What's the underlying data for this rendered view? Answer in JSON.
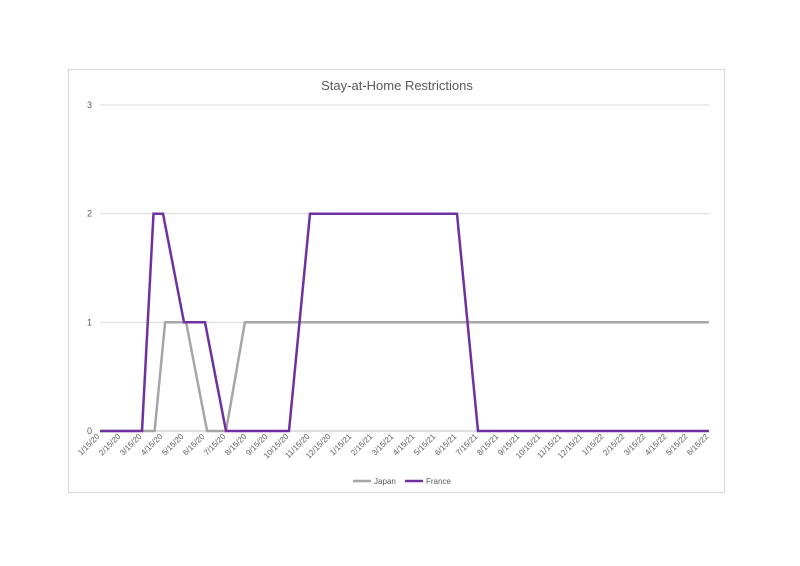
{
  "chart_data": {
    "type": "line",
    "title": "Stay-at-Home Restrictions",
    "xlabel": "",
    "ylabel": "",
    "ylim": [
      0,
      3
    ],
    "yticks": [
      "0",
      "1",
      "2",
      "3"
    ],
    "grid": true,
    "legend_position": "bottom",
    "x": [
      "1/15/20",
      "2/15/20",
      "3/15/20",
      "4/15/20",
      "5/15/20",
      "6/15/20",
      "7/15/20",
      "8/15/20",
      "9/15/20",
      "10/15/20",
      "11/15/20",
      "12/15/20",
      "1/15/21",
      "2/15/21",
      "3/15/21",
      "4/15/21",
      "5/15/21",
      "6/15/21",
      "7/15/21",
      "8/15/21",
      "9/15/21",
      "10/15/21",
      "11/15/21",
      "12/15/21",
      "1/15/22",
      "2/15/22",
      "3/15/22",
      "4/15/22",
      "5/15/22",
      "6/15/22"
    ],
    "series": [
      {
        "name": "Japan",
        "color": "#a6a6a6",
        "points": [
          [
            0,
            0
          ],
          [
            2.6,
            0
          ],
          [
            3.1,
            1
          ],
          [
            4.1,
            1
          ],
          [
            5.1,
            0
          ],
          [
            6.0,
            0
          ],
          [
            6.9,
            1
          ],
          [
            29.0,
            1
          ]
        ]
      },
      {
        "name": "France",
        "color": "#7030a0",
        "points": [
          [
            0,
            0
          ],
          [
            2.0,
            0
          ],
          [
            2.55,
            2
          ],
          [
            3.0,
            2
          ],
          [
            4.0,
            1
          ],
          [
            5.0,
            1
          ],
          [
            6.0,
            0
          ],
          [
            9.0,
            0
          ],
          [
            10.0,
            2
          ],
          [
            17.0,
            2
          ],
          [
            18.0,
            0
          ],
          [
            29.0,
            0
          ]
        ]
      }
    ]
  }
}
